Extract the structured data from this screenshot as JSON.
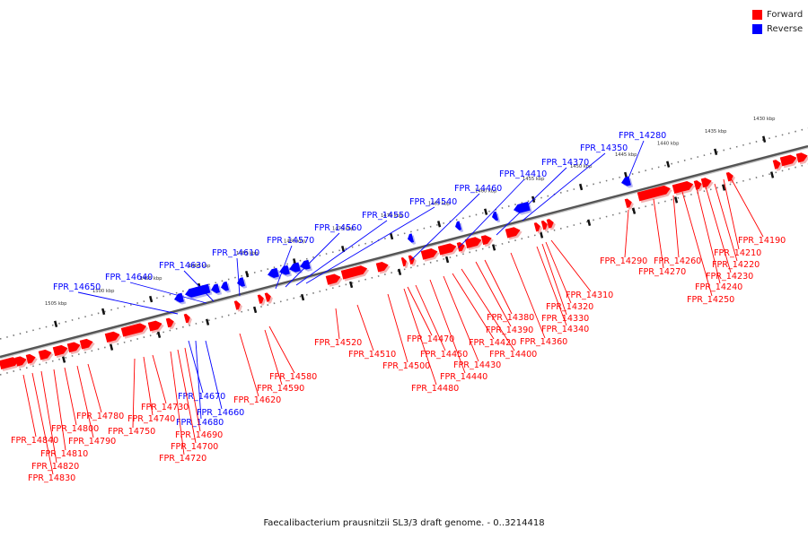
{
  "legend": {
    "forward": {
      "label": "Forward",
      "color": "#ff0000"
    },
    "reverse": {
      "label": "Reverse",
      "color": "#0000ff"
    }
  },
  "caption": "Faecalibacterium prausnitzii SL3/3 draft genome. - 0..3214418",
  "scale_labels": [
    "1430 kbp",
    "1435 kbp",
    "1440 kbp",
    "1445 kbp",
    "1450 kbp",
    "1455 kbp",
    "1460 kbp",
    "1465 kbp",
    "1470 kbp",
    "1475 kbp",
    "1480 kbp",
    "1485 kbp",
    "1490 kbp",
    "1495 kbp",
    "1500 kbp",
    "1505 kbp"
  ],
  "reverse_genes": [
    "FPR_14280",
    "FPR_14350",
    "FPR_14370",
    "FPR_14410",
    "FPR_14460",
    "FPR_14540",
    "FPR_14550",
    "FPR_14560",
    "FPR_14570",
    "FPR_14610",
    "FPR_14630",
    "FPR_14640",
    "FPR_14650",
    "FPR_14660",
    "FPR_14670",
    "FPR_14680"
  ],
  "forward_genes": [
    "FPR_14190",
    "FPR_14210",
    "FPR_14220",
    "FPR_14230",
    "FPR_14240",
    "FPR_14250",
    "FPR_14260",
    "FPR_14270",
    "FPR_14290",
    "FPR_14310",
    "FPR_14320",
    "FPR_14330",
    "FPR_14340",
    "FPR_14360",
    "FPR_14380",
    "FPR_14390",
    "FPR_14400",
    "FPR_14420",
    "FPR_14430",
    "FPR_14440",
    "FPR_14450",
    "FPR_14470",
    "FPR_14480",
    "FPR_14500",
    "FPR_14510",
    "FPR_14520",
    "FPR_14580",
    "FPR_14590",
    "FPR_14620",
    "FPR_14690",
    "FPR_14700",
    "FPR_14720",
    "FPR_14730",
    "FPR_14740",
    "FPR_14750",
    "FPR_14780",
    "FPR_14790",
    "FPR_14800",
    "FPR_14810",
    "FPR_14820",
    "FPR_14830",
    "FPR_14840"
  ]
}
